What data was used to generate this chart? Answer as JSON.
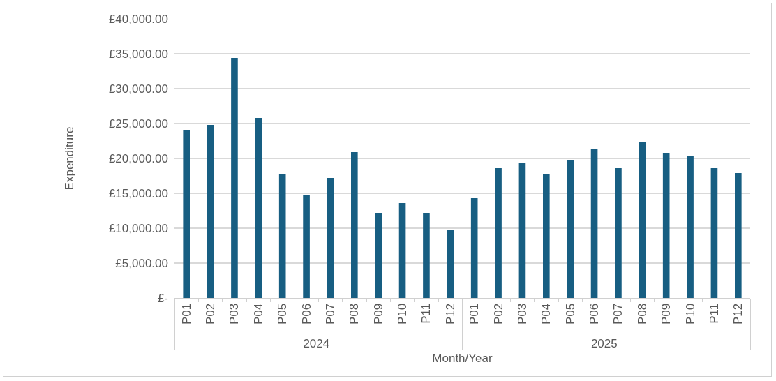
{
  "chart_data": {
    "type": "bar",
    "xlabel": "Month/Year",
    "ylabel": "Expenditure",
    "categories": [
      "P01",
      "P02",
      "P03",
      "P04",
      "P05",
      "P06",
      "P07",
      "P08",
      "P09",
      "P10",
      "P11",
      "P12",
      "P01",
      "P02",
      "P03",
      "P04",
      "P05",
      "P06",
      "P07",
      "P08",
      "P09",
      "P10",
      "P11",
      "P12"
    ],
    "annotations": [
      "2024",
      "2025"
    ],
    "values": [
      24000,
      24800,
      34400,
      25800,
      17700,
      14700,
      17200,
      20900,
      12200,
      13600,
      12200,
      9700,
      14300,
      18600,
      19400,
      17700,
      19800,
      21400,
      18600,
      22400,
      20800,
      20300,
      18600,
      17900
    ],
    "color": "#175e82",
    "ylim": [
      0,
      40000
    ],
    "yticks": [
      {
        "value": 0,
        "label": "£-"
      },
      {
        "value": 5000,
        "label": "£5,000.00"
      },
      {
        "value": 10000,
        "label": "£10,000.00"
      },
      {
        "value": 15000,
        "label": "£15,000.00"
      },
      {
        "value": 20000,
        "label": "£20,000.00"
      },
      {
        "value": 25000,
        "label": "£25,000.00"
      },
      {
        "value": 30000,
        "label": "£30,000.00"
      },
      {
        "value": 35000,
        "label": "£35,000.00"
      },
      {
        "value": 40000,
        "label": "£40,000.00"
      }
    ],
    "grid": "y",
    "legend": false
  }
}
